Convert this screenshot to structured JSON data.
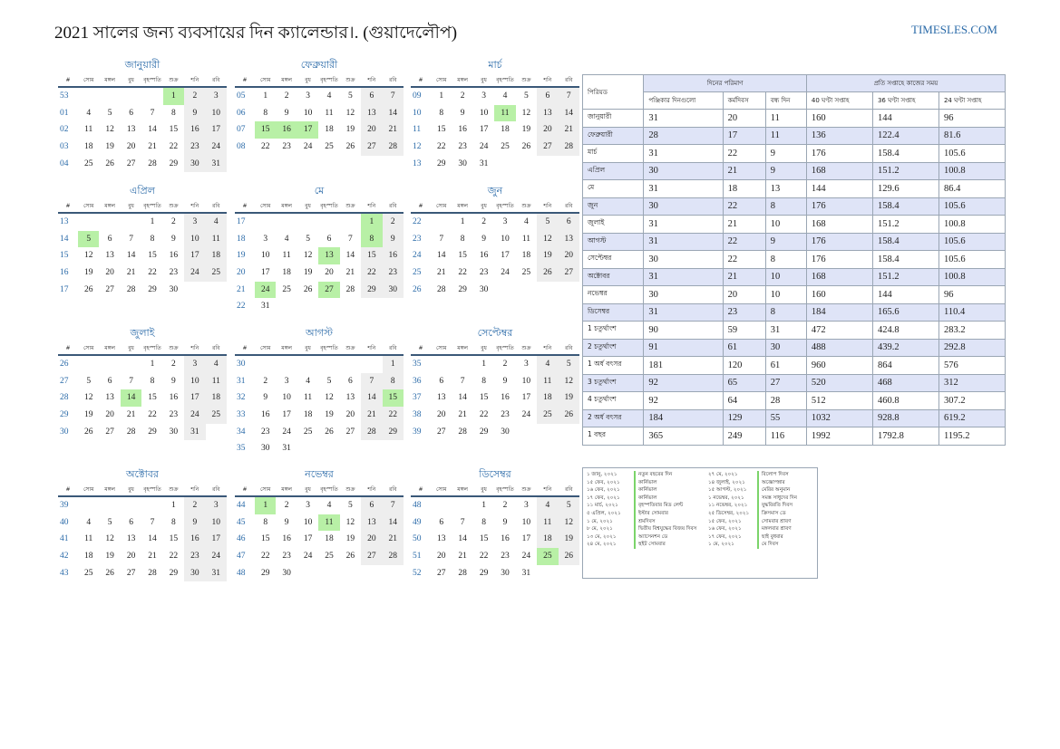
{
  "title": "2021 সালের জন্য ব্যবসায়ের দিন ক্যালেন্ডার।. (গুয়াদেলৌপ)",
  "brand": "TIMESLES.COM",
  "week_header": [
    "#",
    "সোম",
    "মঙ্গল",
    "বুধ",
    "বৃহস্পতি",
    "শুক্র",
    "শনি",
    "রবি"
  ],
  "months": [
    {
      "name": "জানুয়ারী",
      "rows": [
        [
          "53",
          "",
          "",
          "",
          "",
          "1",
          "2",
          "3"
        ],
        [
          "01",
          "4",
          "5",
          "6",
          "7",
          "8",
          "9",
          "10"
        ],
        [
          "02",
          "11",
          "12",
          "13",
          "14",
          "15",
          "16",
          "17"
        ],
        [
          "03",
          "18",
          "19",
          "20",
          "21",
          "22",
          "23",
          "24"
        ],
        [
          "04",
          "25",
          "26",
          "27",
          "28",
          "29",
          "30",
          "31"
        ]
      ],
      "holidays": [
        "1"
      ]
    },
    {
      "name": "ফেব্রুয়ারী",
      "rows": [
        [
          "05",
          "1",
          "2",
          "3",
          "4",
          "5",
          "6",
          "7"
        ],
        [
          "06",
          "8",
          "9",
          "10",
          "11",
          "12",
          "13",
          "14"
        ],
        [
          "07",
          "15",
          "16",
          "17",
          "18",
          "19",
          "20",
          "21"
        ],
        [
          "08",
          "22",
          "23",
          "24",
          "25",
          "26",
          "27",
          "28"
        ]
      ],
      "holidays": [
        "15",
        "16",
        "17"
      ]
    },
    {
      "name": "মার্চ",
      "rows": [
        [
          "09",
          "1",
          "2",
          "3",
          "4",
          "5",
          "6",
          "7"
        ],
        [
          "10",
          "8",
          "9",
          "10",
          "11",
          "12",
          "13",
          "14"
        ],
        [
          "11",
          "15",
          "16",
          "17",
          "18",
          "19",
          "20",
          "21"
        ],
        [
          "12",
          "22",
          "23",
          "24",
          "25",
          "26",
          "27",
          "28"
        ],
        [
          "13",
          "29",
          "30",
          "31",
          "",
          "",
          "",
          ""
        ]
      ],
      "holidays": [
        "11"
      ]
    },
    {
      "name": "এপ্রিল",
      "rows": [
        [
          "13",
          "",
          "",
          "",
          "1",
          "2",
          "3",
          "4"
        ],
        [
          "14",
          "5",
          "6",
          "7",
          "8",
          "9",
          "10",
          "11"
        ],
        [
          "15",
          "12",
          "13",
          "14",
          "15",
          "16",
          "17",
          "18"
        ],
        [
          "16",
          "19",
          "20",
          "21",
          "22",
          "23",
          "24",
          "25"
        ],
        [
          "17",
          "26",
          "27",
          "28",
          "29",
          "30",
          "",
          ""
        ]
      ],
      "holidays": [
        "5"
      ]
    },
    {
      "name": "মে",
      "rows": [
        [
          "17",
          "",
          "",
          "",
          "",
          "",
          "1",
          "2"
        ],
        [
          "18",
          "3",
          "4",
          "5",
          "6",
          "7",
          "8",
          "9"
        ],
        [
          "19",
          "10",
          "11",
          "12",
          "13",
          "14",
          "15",
          "16"
        ],
        [
          "20",
          "17",
          "18",
          "19",
          "20",
          "21",
          "22",
          "23"
        ],
        [
          "21",
          "24",
          "25",
          "26",
          "27",
          "28",
          "29",
          "30"
        ],
        [
          "22",
          "31",
          "",
          "",
          "",
          "",
          "",
          ""
        ]
      ],
      "holidays": [
        "1",
        "8",
        "13",
        "24",
        "27"
      ]
    },
    {
      "name": "জুন",
      "rows": [
        [
          "22",
          "",
          "1",
          "2",
          "3",
          "4",
          "5",
          "6"
        ],
        [
          "23",
          "7",
          "8",
          "9",
          "10",
          "11",
          "12",
          "13"
        ],
        [
          "24",
          "14",
          "15",
          "16",
          "17",
          "18",
          "19",
          "20"
        ],
        [
          "25",
          "21",
          "22",
          "23",
          "24",
          "25",
          "26",
          "27"
        ],
        [
          "26",
          "28",
          "29",
          "30",
          "",
          "",
          "",
          ""
        ]
      ],
      "holidays": []
    },
    {
      "name": "জুলাই",
      "rows": [
        [
          "26",
          "",
          "",
          "",
          "1",
          "2",
          "3",
          "4"
        ],
        [
          "27",
          "5",
          "6",
          "7",
          "8",
          "9",
          "10",
          "11"
        ],
        [
          "28",
          "12",
          "13",
          "14",
          "15",
          "16",
          "17",
          "18"
        ],
        [
          "29",
          "19",
          "20",
          "21",
          "22",
          "23",
          "24",
          "25"
        ],
        [
          "30",
          "26",
          "27",
          "28",
          "29",
          "30",
          "31",
          ""
        ]
      ],
      "holidays": [
        "14"
      ]
    },
    {
      "name": "আগস্ট",
      "rows": [
        [
          "30",
          "",
          "",
          "",
          "",
          "",
          "",
          "1"
        ],
        [
          "31",
          "2",
          "3",
          "4",
          "5",
          "6",
          "7",
          "8"
        ],
        [
          "32",
          "9",
          "10",
          "11",
          "12",
          "13",
          "14",
          "15"
        ],
        [
          "33",
          "16",
          "17",
          "18",
          "19",
          "20",
          "21",
          "22"
        ],
        [
          "34",
          "23",
          "24",
          "25",
          "26",
          "27",
          "28",
          "29"
        ],
        [
          "35",
          "30",
          "31",
          "",
          "",
          "",
          "",
          ""
        ]
      ],
      "holidays": [
        "15"
      ]
    },
    {
      "name": "সেপ্টেম্বর",
      "rows": [
        [
          "35",
          "",
          "",
          "1",
          "2",
          "3",
          "4",
          "5"
        ],
        [
          "36",
          "6",
          "7",
          "8",
          "9",
          "10",
          "11",
          "12"
        ],
        [
          "37",
          "13",
          "14",
          "15",
          "16",
          "17",
          "18",
          "19"
        ],
        [
          "38",
          "20",
          "21",
          "22",
          "23",
          "24",
          "25",
          "26"
        ],
        [
          "39",
          "27",
          "28",
          "29",
          "30",
          "",
          "",
          ""
        ]
      ],
      "holidays": []
    },
    {
      "name": "অক্টোবর",
      "rows": [
        [
          "39",
          "",
          "",
          "",
          "",
          "1",
          "2",
          "3"
        ],
        [
          "40",
          "4",
          "5",
          "6",
          "7",
          "8",
          "9",
          "10"
        ],
        [
          "41",
          "11",
          "12",
          "13",
          "14",
          "15",
          "16",
          "17"
        ],
        [
          "42",
          "18",
          "19",
          "20",
          "21",
          "22",
          "23",
          "24"
        ],
        [
          "43",
          "25",
          "26",
          "27",
          "28",
          "29",
          "30",
          "31"
        ]
      ],
      "holidays": []
    },
    {
      "name": "নভেম্বর",
      "rows": [
        [
          "44",
          "1",
          "2",
          "3",
          "4",
          "5",
          "6",
          "7"
        ],
        [
          "45",
          "8",
          "9",
          "10",
          "11",
          "12",
          "13",
          "14"
        ],
        [
          "46",
          "15",
          "16",
          "17",
          "18",
          "19",
          "20",
          "21"
        ],
        [
          "47",
          "22",
          "23",
          "24",
          "25",
          "26",
          "27",
          "28"
        ],
        [
          "48",
          "29",
          "30",
          "",
          "",
          "",
          "",
          ""
        ]
      ],
      "holidays": [
        "1",
        "11"
      ]
    },
    {
      "name": "ডিসেম্বর",
      "rows": [
        [
          "48",
          "",
          "",
          "1",
          "2",
          "3",
          "4",
          "5"
        ],
        [
          "49",
          "6",
          "7",
          "8",
          "9",
          "10",
          "11",
          "12"
        ],
        [
          "50",
          "13",
          "14",
          "15",
          "16",
          "17",
          "18",
          "19"
        ],
        [
          "51",
          "20",
          "21",
          "22",
          "23",
          "24",
          "25",
          "26"
        ],
        [
          "52",
          "27",
          "28",
          "29",
          "30",
          "31",
          "",
          ""
        ]
      ],
      "holidays": [
        "25"
      ]
    }
  ],
  "summary": {
    "head_period": "পিরিয়ড",
    "head_days": "দিনের পরিমাণ",
    "head_hours": "প্রতি সপ্তাহে কাজের সময়",
    "sub": [
      "পঞ্জিকার দিনগুলো",
      "কর্মদিবস",
      "বন্ধ দিন",
      "40 ঘণ্টা সপ্তাহ",
      "36 ঘণ্টা সপ্তাহ",
      "24 ঘণ্টা সপ্তাহ"
    ],
    "rows": [
      [
        "জানুয়ারী",
        "31",
        "20",
        "11",
        "160",
        "144",
        "96"
      ],
      [
        "ফেব্রুয়ারী",
        "28",
        "17",
        "11",
        "136",
        "122.4",
        "81.6"
      ],
      [
        "মার্চ",
        "31",
        "22",
        "9",
        "176",
        "158.4",
        "105.6"
      ],
      [
        "এপ্রিল",
        "30",
        "21",
        "9",
        "168",
        "151.2",
        "100.8"
      ],
      [
        "মে",
        "31",
        "18",
        "13",
        "144",
        "129.6",
        "86.4"
      ],
      [
        "জুন",
        "30",
        "22",
        "8",
        "176",
        "158.4",
        "105.6"
      ],
      [
        "জুলাই",
        "31",
        "21",
        "10",
        "168",
        "151.2",
        "100.8"
      ],
      [
        "আগস্ট",
        "31",
        "22",
        "9",
        "176",
        "158.4",
        "105.6"
      ],
      [
        "সেপ্টেম্বর",
        "30",
        "22",
        "8",
        "176",
        "158.4",
        "105.6"
      ],
      [
        "অক্টোবর",
        "31",
        "21",
        "10",
        "168",
        "151.2",
        "100.8"
      ],
      [
        "নভেম্বর",
        "30",
        "20",
        "10",
        "160",
        "144",
        "96"
      ],
      [
        "ডিসেম্বর",
        "31",
        "23",
        "8",
        "184",
        "165.6",
        "110.4"
      ],
      [
        "1 চতুর্থাংশ",
        "90",
        "59",
        "31",
        "472",
        "424.8",
        "283.2"
      ],
      [
        "2 চতুর্থাংশ",
        "91",
        "61",
        "30",
        "488",
        "439.2",
        "292.8"
      ],
      [
        "1 অর্ধ বৎসর",
        "181",
        "120",
        "61",
        "960",
        "864",
        "576"
      ],
      [
        "3 চতুর্থাংশ",
        "92",
        "65",
        "27",
        "520",
        "468",
        "312"
      ],
      [
        "4 চতুর্থাংশ",
        "92",
        "64",
        "28",
        "512",
        "460.8",
        "307.2"
      ],
      [
        "2 অর্ধ বৎসর",
        "184",
        "129",
        "55",
        "1032",
        "928.8",
        "619.2"
      ],
      [
        "1 বছর",
        "365",
        "249",
        "116",
        "1992",
        "1792.8",
        "1195.2"
      ]
    ]
  },
  "holidays": [
    [
      "১ জানু, ২০২১",
      "নতুন বছরের দিন",
      "২৭ মে, ২০২১",
      "বিলোপ দিবস"
    ],
    [
      "১৫ ফেব, ২০২১",
      "কার্নিভাল",
      "১৪ জুলাই, ২০২১",
      "অজ্ঞোপন্নার"
    ],
    [
      "১৬ ফেব, ২০২১",
      "কার্নিভাল",
      "১৫ আগস্ট, ২০২১",
      "মেরির অনুমান"
    ],
    [
      "১৭ ফেব, ২০২১",
      "কার্নিভাল",
      "১ নভেম্বর, ২০২১",
      "সমস্ত সাধুদের দিন"
    ],
    [
      "১১ মার্চ, ২০২১",
      "বৃহস্পতিবার মিড লেন্ট",
      "১১ নভেম্বর, ২০২১",
      "যুদ্ধবিরতি দিবস"
    ],
    [
      "৫ এপ্রিল, ২০২১",
      "ইস্টার সোমবার",
      "২৫ ডিসেম্বর, ২০২১",
      "ক্রিসমাস ডে"
    ],
    [
      "১ মে, ২০২১",
      "শ্রমদিবস",
      "১৫ ফেব, ২০২১",
      "সোমবার শ্রাবণ"
    ],
    [
      "৮ মে, ২০২১",
      "দ্বিতীয় বিশ্বযুদ্ধের বিজয় দিবস",
      "১৬ ফেব, ২০২১",
      "মঙ্গলবার শ্রাবণ"
    ],
    [
      "১৩ মে, ২০২১",
      "অ্যাসেনশন ডে",
      "১৭ ফেব, ২০২১",
      "ছাই বুধবার"
    ],
    [
      "২৪ মে, ২০২১",
      "হুইট সোমবার",
      "১ মে, ২০২১",
      "মে দিবস"
    ]
  ]
}
